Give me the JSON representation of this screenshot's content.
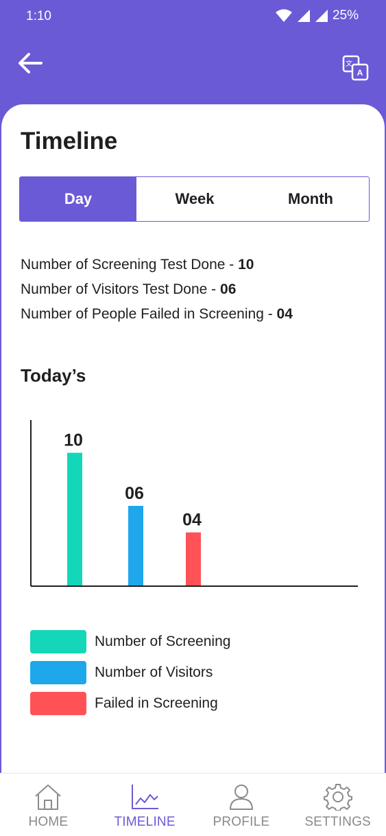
{
  "status": {
    "time": "1:10",
    "battery": "25%"
  },
  "page": {
    "title": "Timeline"
  },
  "tabs": [
    {
      "label": "Day",
      "active": true
    },
    {
      "label": "Week",
      "active": false
    },
    {
      "label": "Month",
      "active": false
    }
  ],
  "stats": [
    {
      "label": "Number of Screening Test Done - ",
      "value": "10"
    },
    {
      "label": "Number of Visitors Test Done - ",
      "value": "06"
    },
    {
      "label": "Number of People Failed in Screening - ",
      "value": "04"
    }
  ],
  "section": {
    "today_title": "Today’s"
  },
  "chart_data": {
    "type": "bar",
    "categories": [
      "Number of Screening",
      "Number of Visitors",
      "Failed in Screening"
    ],
    "values": [
      10,
      6,
      4
    ],
    "value_labels": [
      "10",
      "06",
      "04"
    ],
    "colors": [
      "#14D6B8",
      "#1EA7EA",
      "#FF5257"
    ],
    "ylim": [
      0,
      12
    ],
    "title": "",
    "xlabel": "",
    "ylabel": "",
    "grid": false,
    "legend": "below"
  },
  "legend": [
    {
      "label": "Number of Screening",
      "color": "#14D6B8"
    },
    {
      "label": "Number of Visitors",
      "color": "#1EA7EA"
    },
    {
      "label": "Failed in Screening",
      "color": "#FF5257"
    }
  ],
  "nav": [
    {
      "label": "HOME",
      "icon": "home-icon",
      "active": false
    },
    {
      "label": "TIMELINE",
      "icon": "chart-icon",
      "active": true
    },
    {
      "label": "PROFILE",
      "icon": "person-icon",
      "active": false
    },
    {
      "label": "SETTINGS",
      "icon": "gear-icon",
      "active": false
    }
  ],
  "colors": {
    "accent": "#6A5AD6"
  }
}
